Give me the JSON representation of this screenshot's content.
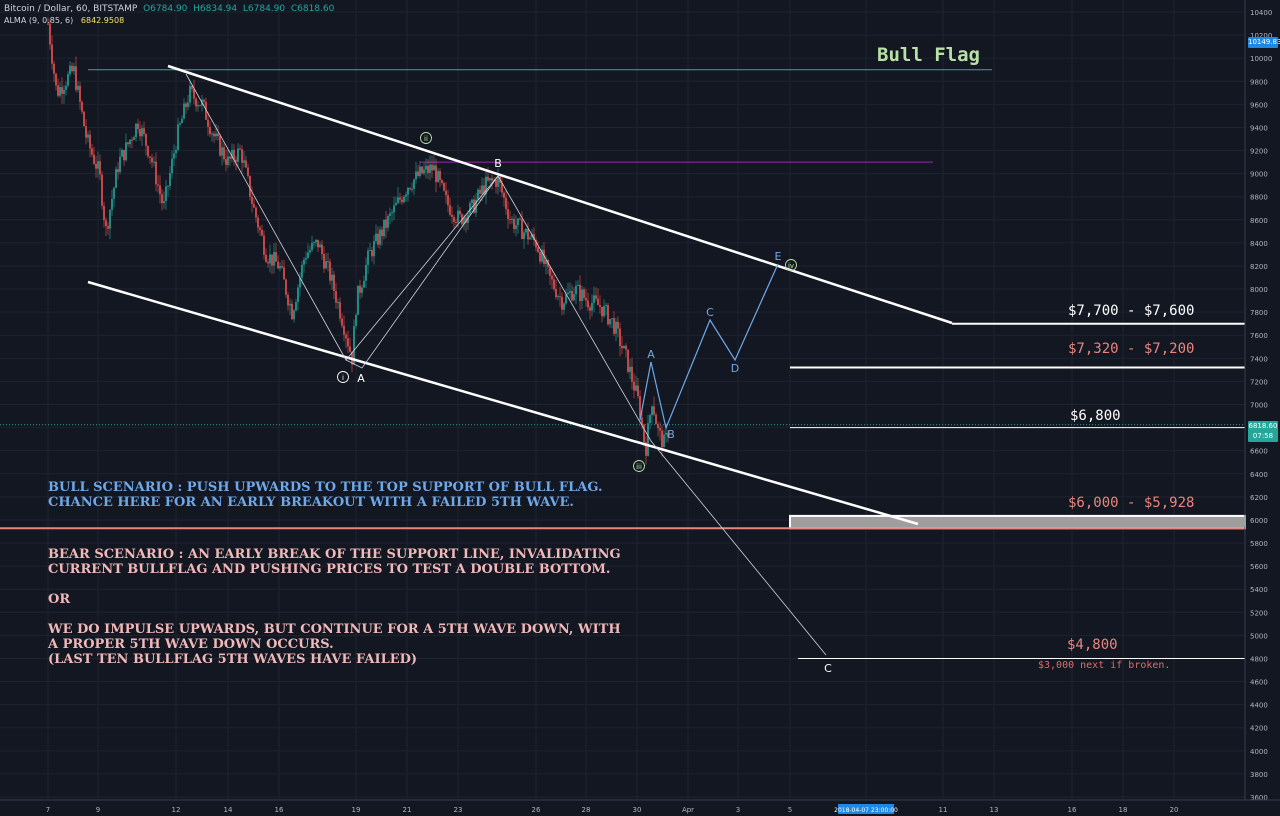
{
  "header": {
    "symbol": "Bitcoin / Dollar, 60, BITSTAMP",
    "open": "O6784.90",
    "high": "H6834.94",
    "low": "L6784.90",
    "close": "C6818.60",
    "indicator": "ALMA (9, 0.85, 6)",
    "indicator_value": "6842.9508"
  },
  "title": "Bull Flag",
  "notes": {
    "bull": "BULL SCENARIO : PUSH UPWARDS TO THE TOP SUPPORT OF BULL FLAG.\nCHANCE HERE FOR AN EARLY BREAKOUT WITH A FAILED 5TH WAVE.",
    "bear": "BEAR SCENARIO : AN EARLY BREAK OF THE SUPPORT LINE, INVALIDATING\nCURRENT BULLFLAG AND PUSHING PRICES TO TEST A DOUBLE BOTTOM.\n\nOR\n\nWE DO IMPULSE UPWARDS, BUT CONTINUE FOR A 5TH WAVE DOWN, WITH\nA PROPER 5TH WAVE DOWN OCCURS.\n(LAST TEN BULLFLAG 5TH WAVES HAVE FAILED)"
  },
  "levels": {
    "l7700": "$7,700 - $7,600",
    "l7320": "$7,320 - $7,200",
    "l6800": "$6,800",
    "l6000": "$6,000 - $5,928",
    "l4800": "$4,800",
    "l4800_note": "$3,000 next if broken."
  },
  "axis_tags": {
    "high": "10149.83",
    "last": "6818.60",
    "timer": "07:58"
  },
  "colors": {
    "background": "#131722",
    "up": "#26a69a",
    "down": "#ef5350",
    "bull_text": "#6fa8e8",
    "bear_text": "#f0b8b8",
    "level_red": "#e8857f",
    "projection": "#6fa8e8"
  },
  "chart_data": {
    "type": "candlestick",
    "symbol": "BTCUSD",
    "interval": "60",
    "exchange": "BITSTAMP",
    "y_axis_ticks": [
      10400,
      10200,
      10000,
      9800,
      9600,
      9400,
      9200,
      9000,
      8800,
      8600,
      8400,
      8200,
      8000,
      7800,
      7600,
      7400,
      7200,
      7000,
      6800,
      6600,
      6400,
      6200,
      6000,
      5800,
      5600,
      5400,
      5200,
      5000,
      4800,
      4600,
      4400,
      4200,
      4000,
      3800,
      3600
    ],
    "x_axis_ticks": [
      "7",
      "9",
      "12",
      "14",
      "16",
      "19",
      "21",
      "23",
      "26",
      "28",
      "30",
      "Apr",
      "3",
      "5",
      "2018-04-07 23:00:00",
      "11",
      "13",
      "16",
      "18",
      "20"
    ],
    "price_path": [
      [
        "2018-03-07",
        10300
      ],
      [
        "2018-03-07 08:00",
        9700
      ],
      [
        "2018-03-08",
        9900
      ],
      [
        "2018-03-08 12:00",
        9300
      ],
      [
        "2018-03-09",
        9000
      ],
      [
        "2018-03-09 06:00",
        8500
      ],
      [
        "2018-03-09 18:00",
        9100
      ],
      [
        "2018-03-10",
        9200
      ],
      [
        "2018-03-10 12:00",
        9450
      ],
      [
        "2018-03-11",
        9150
      ],
      [
        "2018-03-11 12:00",
        8700
      ],
      [
        "2018-03-12",
        9300
      ],
      [
        "2018-03-12 12:00",
        9700
      ],
      [
        "2018-03-13",
        9600
      ],
      [
        "2018-03-13 12:00",
        9300
      ],
      [
        "2018-03-14",
        9100
      ],
      [
        "2018-03-14 12:00",
        9200
      ],
      [
        "2018-03-15",
        8700
      ],
      [
        "2018-03-15 12:00",
        8300
      ],
      [
        "2018-03-16",
        8200
      ],
      [
        "2018-03-16 12:00",
        7800
      ],
      [
        "2018-03-17",
        8300
      ],
      [
        "2018-03-17 12:00",
        8400
      ],
      [
        "2018-03-18",
        8100
      ],
      [
        "2018-03-18 12:00",
        7700
      ],
      [
        "2018-03-18 20:00",
        7400
      ],
      [
        "2018-03-19",
        7900
      ],
      [
        "2018-03-19 12:00",
        8300
      ],
      [
        "2018-03-20",
        8500
      ],
      [
        "2018-03-20 12:00",
        8700
      ],
      [
        "2018-03-21",
        8900
      ],
      [
        "2018-03-21 12:00",
        9000
      ],
      [
        "2018-03-22",
        9050
      ],
      [
        "2018-03-22 12:00",
        8750
      ],
      [
        "2018-03-23",
        8600
      ],
      [
        "2018-03-23 12:00",
        8700
      ],
      [
        "2018-03-24",
        8900
      ],
      [
        "2018-03-24 12:00",
        8950
      ],
      [
        "2018-03-25",
        8600
      ],
      [
        "2018-03-25 12:00",
        8500
      ],
      [
        "2018-03-26",
        8400
      ],
      [
        "2018-03-26 12:00",
        8100
      ],
      [
        "2018-03-27",
        7900
      ],
      [
        "2018-03-27 12:00",
        8000
      ],
      [
        "2018-03-28",
        7900
      ],
      [
        "2018-03-28 12:00",
        7850
      ],
      [
        "2018-03-29",
        7700
      ],
      [
        "2018-03-29 12:00",
        7400
      ],
      [
        "2018-03-30",
        7000
      ],
      [
        "2018-03-30 06:00",
        6600
      ],
      [
        "2018-03-30 12:00",
        7050
      ],
      [
        "2018-03-30 18:00",
        6750
      ],
      [
        "2018-03-31",
        6650
      ],
      [
        "2018-03-31 04:00",
        6818.6
      ]
    ],
    "levels": [
      {
        "label": "$7,700 - $7,600",
        "value": 7700
      },
      {
        "label": "$7,320 - $7,200",
        "value": 7320
      },
      {
        "label": "$6,800",
        "value": 6800
      },
      {
        "label": "$6,000 - $5,928",
        "range": [
          5928,
          6000
        ]
      },
      {
        "label": "$4,800",
        "value": 4800
      }
    ],
    "wave_labels": [
      "i",
      "ii",
      "iii",
      "iv",
      "A",
      "B",
      "C",
      "D",
      "E"
    ],
    "annotations": [
      "Bull Flag"
    ]
  }
}
